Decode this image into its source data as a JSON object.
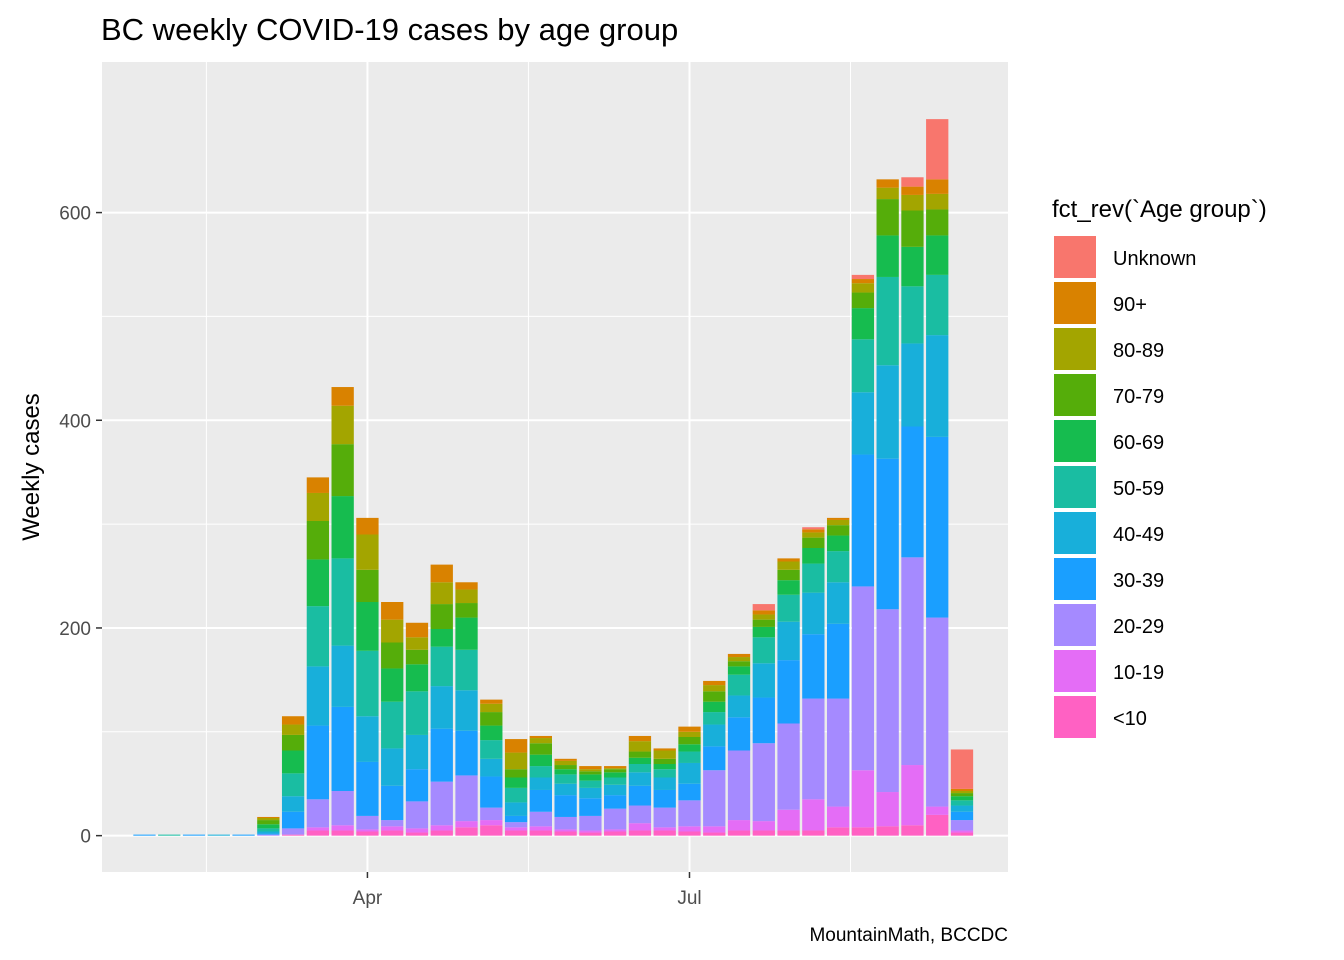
{
  "chart_data": {
    "type": "bar",
    "stacked": true,
    "title": "BC weekly COVID-19 cases by age group",
    "xlabel": "",
    "ylabel": "Weekly cases",
    "caption": "MountainMath, BCCDC",
    "legend_title": "fct_rev(`Age group`)",
    "legend_position": "right",
    "grid": true,
    "x_ticks": [
      {
        "label": "Apr",
        "date": "2020-04-01"
      },
      {
        "label": "Jul",
        "date": "2020-07-01"
      }
    ],
    "y_ticks": [
      0,
      200,
      400,
      600
    ],
    "ylim": [
      -35,
      745
    ],
    "xlim": [
      "2020-01-17",
      "2020-09-29"
    ],
    "categories": [
      "2020-01-29",
      "2020-02-05",
      "2020-02-12",
      "2020-02-19",
      "2020-02-26",
      "2020-03-04",
      "2020-03-11",
      "2020-03-18",
      "2020-03-25",
      "2020-04-01",
      "2020-04-08",
      "2020-04-15",
      "2020-04-22",
      "2020-04-29",
      "2020-05-06",
      "2020-05-13",
      "2020-05-20",
      "2020-05-27",
      "2020-06-03",
      "2020-06-10",
      "2020-06-17",
      "2020-06-24",
      "2020-07-01",
      "2020-07-08",
      "2020-07-15",
      "2020-07-22",
      "2020-07-29",
      "2020-08-05",
      "2020-08-12",
      "2020-08-19",
      "2020-08-26",
      "2020-09-02",
      "2020-09-09",
      "2020-09-16"
    ],
    "series": [
      {
        "name": "<10",
        "color": "#FF61C3",
        "values": [
          0,
          0,
          0,
          0,
          0,
          0,
          1,
          5,
          5,
          4,
          5,
          3,
          5,
          8,
          10,
          5,
          5,
          4,
          3,
          4,
          5,
          5,
          4,
          3,
          5,
          5,
          5,
          5,
          8,
          8,
          9,
          10,
          20,
          3
        ]
      },
      {
        "name": "10-19",
        "color": "#E46DF6",
        "values": [
          0,
          0,
          0,
          0,
          0,
          0,
          0,
          3,
          5,
          2,
          4,
          4,
          5,
          6,
          5,
          3,
          4,
          2,
          2,
          2,
          7,
          3,
          5,
          6,
          10,
          9,
          20,
          30,
          20,
          55,
          33,
          58,
          8,
          2
        ]
      },
      {
        "name": "20-29",
        "color": "#A58AFF",
        "values": [
          0,
          0,
          0,
          0,
          0,
          1,
          6,
          27,
          33,
          13,
          6,
          26,
          42,
          44,
          12,
          5,
          14,
          12,
          14,
          20,
          17,
          19,
          25,
          54,
          67,
          75,
          83,
          97,
          104,
          177,
          176,
          200,
          182,
          10
        ]
      },
      {
        "name": "30-39",
        "color": "#1A9FFF",
        "values": [
          1,
          0,
          1,
          0,
          1,
          1,
          16,
          71,
          81,
          52,
          33,
          31,
          51,
          43,
          30,
          6,
          21,
          21,
          17,
          13,
          19,
          17,
          16,
          23,
          32,
          44,
          61,
          62,
          72,
          127,
          145,
          126,
          174,
          8
        ]
      },
      {
        "name": "40-49",
        "color": "#18AFDA",
        "values": [
          0,
          0,
          0,
          1,
          0,
          2,
          15,
          57,
          59,
          44,
          36,
          33,
          41,
          39,
          17,
          13,
          12,
          11,
          10,
          10,
          13,
          12,
          20,
          21,
          21,
          33,
          37,
          40,
          40,
          60,
          90,
          80,
          98,
          6
        ]
      },
      {
        "name": "50-59",
        "color": "#1ABDA2",
        "values": [
          0,
          1,
          0,
          0,
          0,
          3,
          22,
          58,
          84,
          63,
          45,
          42,
          38,
          39,
          18,
          14,
          11,
          9,
          7,
          7,
          8,
          8,
          11,
          12,
          20,
          25,
          26,
          28,
          30,
          51,
          85,
          55,
          58,
          5
        ]
      },
      {
        "name": "60-69",
        "color": "#16BC4F",
        "values": [
          0,
          0,
          0,
          0,
          0,
          4,
          22,
          45,
          60,
          47,
          32,
          26,
          17,
          31,
          14,
          10,
          11,
          5,
          6,
          5,
          6,
          5,
          7,
          10,
          8,
          10,
          14,
          15,
          15,
          30,
          40,
          38,
          38,
          4
        ]
      },
      {
        "name": "70-79",
        "color": "#55AD0A",
        "values": [
          0,
          0,
          0,
          0,
          0,
          4,
          15,
          37,
          50,
          31,
          25,
          14,
          24,
          14,
          13,
          8,
          11,
          4,
          3,
          3,
          6,
          5,
          7,
          10,
          5,
          7,
          10,
          10,
          10,
          15,
          35,
          35,
          25,
          3
        ]
      },
      {
        "name": "80-89",
        "color": "#A3A500",
        "values": [
          0,
          0,
          0,
          0,
          0,
          2,
          10,
          27,
          37,
          34,
          22,
          12,
          21,
          13,
          8,
          16,
          5,
          4,
          2,
          1,
          10,
          8,
          5,
          6,
          4,
          5,
          8,
          5,
          5,
          9,
          11,
          15,
          15,
          2
        ]
      },
      {
        "name": "90+",
        "color": "#D98200",
        "values": [
          0,
          0,
          0,
          0,
          0,
          1,
          8,
          15,
          18,
          16,
          17,
          14,
          17,
          7,
          4,
          13,
          2,
          2,
          3,
          2,
          5,
          2,
          5,
          4,
          3,
          4,
          3,
          3,
          2,
          4,
          8,
          8,
          14,
          2
        ]
      },
      {
        "name": "Unknown",
        "color": "#F8766D",
        "values": [
          0,
          0,
          0,
          0,
          0,
          0,
          0,
          0,
          0,
          0,
          0,
          0,
          0,
          0,
          0,
          0,
          0,
          0,
          0,
          0,
          0,
          0,
          0,
          0,
          0,
          6,
          0,
          2,
          0,
          4,
          0,
          9,
          58,
          38
        ]
      }
    ]
  }
}
